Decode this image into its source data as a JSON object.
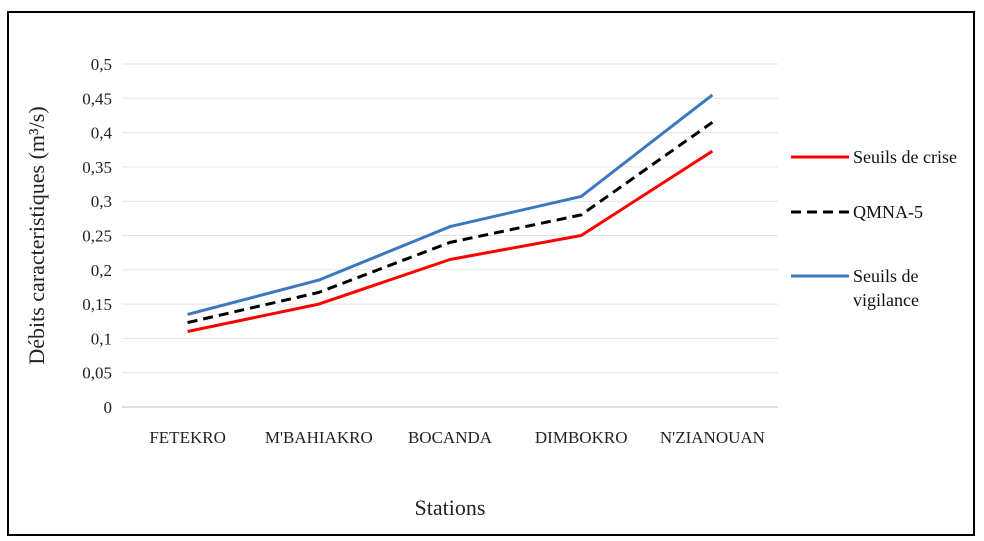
{
  "chart_data": {
    "type": "line",
    "categories": [
      "FETEKRO",
      "M'BAHIAKRO",
      "BOCANDA",
      "DIMBOKRO",
      "N'ZIANOUAN"
    ],
    "series": [
      {
        "name": "Seuils de crise",
        "values": [
          0.11,
          0.15,
          0.215,
          0.25,
          0.373
        ],
        "color": "#ff0000",
        "dash": "solid"
      },
      {
        "name": "QMNA-5",
        "values": [
          0.123,
          0.167,
          0.24,
          0.28,
          0.415
        ],
        "color": "#000000",
        "dash": "dashed"
      },
      {
        "name": "Seuils de vigilance",
        "values": [
          0.135,
          0.185,
          0.263,
          0.307,
          0.455
        ],
        "color": "#3b78c0",
        "dash": "solid"
      }
    ],
    "xlabel": "Stations",
    "ylabel": "Débits caracteristiques (m³/s)",
    "ylim": [
      0,
      0.5
    ],
    "yticks": [
      "0",
      "0,05",
      "0,1",
      "0,15",
      "0,2",
      "0,25",
      "0,3",
      "0,35",
      "0,4",
      "0,45",
      "0,5"
    ],
    "grid": true,
    "legend": "right"
  }
}
